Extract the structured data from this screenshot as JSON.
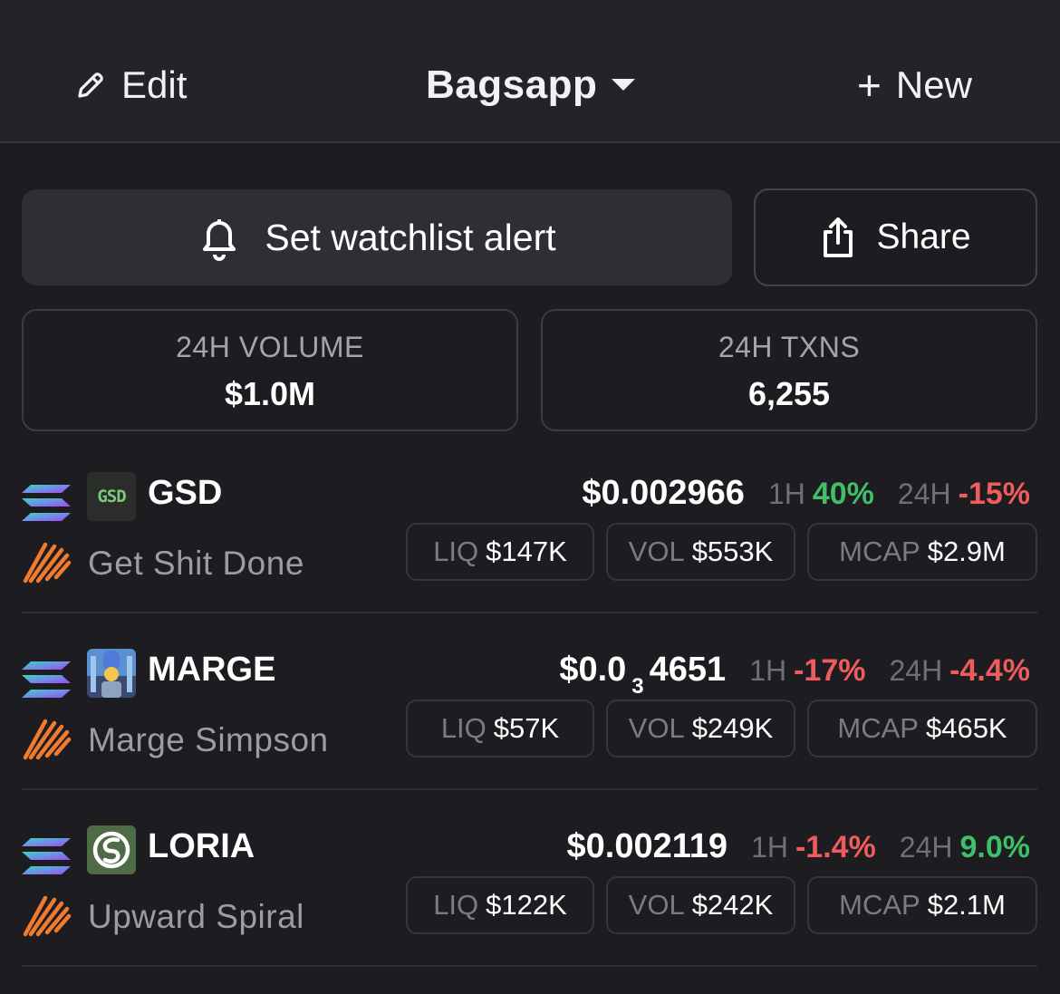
{
  "header": {
    "edit_label": "Edit",
    "title": "Bagsapp",
    "new_label": "New",
    "icons": {
      "edit": "pencil-icon",
      "dropdown": "chevron-down-icon",
      "new": "plus-icon"
    }
  },
  "actions": {
    "alert_label": "Set watchlist alert",
    "share_label": "Share",
    "icons": {
      "alert": "bell-icon",
      "share": "share-icon"
    }
  },
  "stats": {
    "volume_label": "24H VOLUME",
    "volume_value": "$1.0M",
    "txns_label": "24H TXNS",
    "txns_value": "6,255"
  },
  "labels": {
    "h1": "1H",
    "h24": "24H",
    "liq": "LIQ",
    "vol": "VOL",
    "mcap": "MCAP"
  },
  "colors": {
    "positive": "#3fbf6a",
    "negative": "#ef5c5c",
    "background": "#1c1c21"
  },
  "tokens": [
    {
      "symbol": "GSD",
      "avatar_text": "GSD",
      "name": "Get Shit Done",
      "price": "$0.002966",
      "change_1h": "40%",
      "change_1h_dir": "pos",
      "change_24h": "-15%",
      "change_24h_dir": "neg",
      "liq": "$147K",
      "vol": "$553K",
      "mcap": "$2.9M"
    },
    {
      "symbol": "MARGE",
      "name": "Marge Simpson",
      "price_prefix": "$0.0",
      "price_zeros": "3",
      "price_suffix": "4651",
      "change_1h": "-17%",
      "change_1h_dir": "neg",
      "change_24h": "-4.4%",
      "change_24h_dir": "neg",
      "liq": "$57K",
      "vol": "$249K",
      "mcap": "$465K"
    },
    {
      "symbol": "LORIA",
      "name": "Upward Spiral",
      "price": "$0.002119",
      "change_1h": "-1.4%",
      "change_1h_dir": "neg",
      "change_24h": "9.0%",
      "change_24h_dir": "pos",
      "liq": "$122K",
      "vol": "$242K",
      "mcap": "$2.1M"
    }
  ]
}
